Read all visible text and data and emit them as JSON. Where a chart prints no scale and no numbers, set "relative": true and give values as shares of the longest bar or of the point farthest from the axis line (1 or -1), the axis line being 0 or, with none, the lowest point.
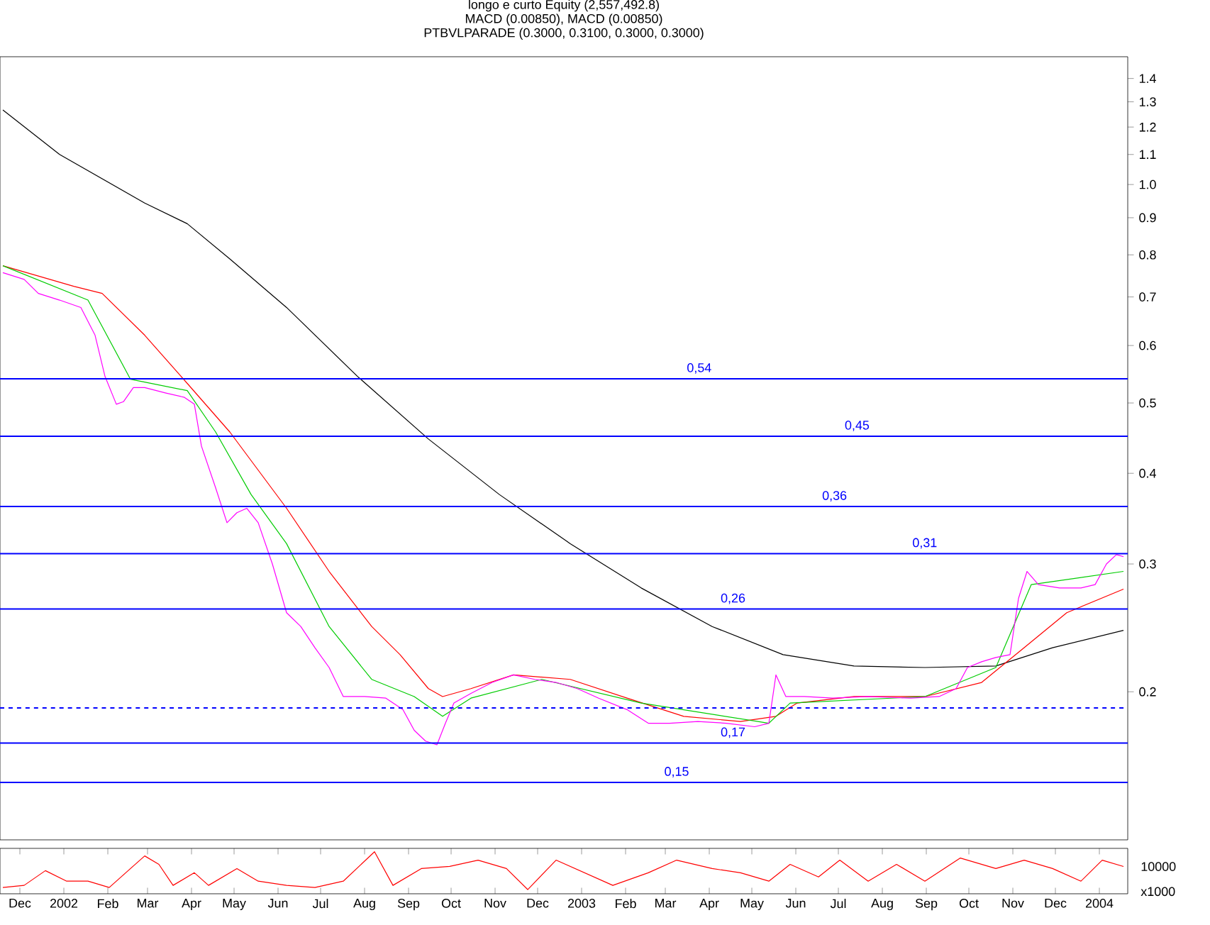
{
  "chart_data": [
    {
      "type": "line",
      "log": "y",
      "tick_labels": "y",
      "annotations": [
        "longo e curto Equity (2,557,492.8)",
        "MACD (0.00850), MACD (0.00850)",
        "PTBVLPARADE (0.3000, 0.3100, 0.3000, 0.3000)"
      ],
      "xlim": [
        "2001-12-01",
        "2004-02-04"
      ],
      "ylim": [
        0.125,
        1.5
      ],
      "yticks": [
        0.2,
        0.3,
        0.4,
        0.5,
        0.6,
        0.7,
        0.8,
        0.9,
        {
          "value": 1.0,
          "label": "1.0"
        },
        1.1,
        1.2,
        1.3,
        1.4
      ],
      "series": [
        {
          "color": "#000000",
          "x": [
            "2001-12-03",
            "2002-01-12",
            "2002-03-13",
            "2002-04-12",
            "2002-05-12",
            "2002-06-21",
            "2002-08-10",
            "2002-09-29",
            "2002-11-18",
            "2003-01-07",
            "2003-02-26",
            "2003-04-17",
            "2003-06-06",
            "2003-07-26",
            "2003-09-14",
            "2003-11-03",
            "2003-12-13",
            "2004-02-01"
          ],
          "values": [
            1.267,
            1.1,
            0.943,
            0.883,
            0.79,
            0.677,
            0.544,
            0.446,
            0.374,
            0.32,
            0.278,
            0.246,
            0.225,
            0.217,
            0.216,
            0.217,
            0.23,
            0.243
          ]
        },
        {
          "color": "#ff0000",
          "x": [
            "2001-12-03",
            "2002-01-22",
            "2002-02-11",
            "2002-03-13",
            "2002-04-12",
            "2002-05-12",
            "2002-06-21",
            "2002-07-21",
            "2002-08-20",
            "2002-09-09",
            "2002-09-29",
            "2002-10-09",
            "2002-10-29",
            "2002-11-28",
            "2003-01-07",
            "2003-02-16",
            "2003-03-28",
            "2003-05-07",
            "2003-06-01",
            "2003-06-16",
            "2003-07-26",
            "2003-09-14",
            "2003-10-24",
            "2003-11-23",
            "2003-12-23",
            "2004-02-01"
          ],
          "values": [
            0.773,
            0.724,
            0.708,
            0.62,
            0.532,
            0.456,
            0.358,
            0.293,
            0.246,
            0.225,
            0.202,
            0.197,
            0.202,
            0.211,
            0.208,
            0.196,
            0.185,
            0.182,
            0.185,
            0.193,
            0.197,
            0.197,
            0.206,
            0.23,
            0.257,
            0.277
          ]
        },
        {
          "color": "#00cc00",
          "x": [
            "2001-12-03",
            "2002-02-01",
            "2002-03-03",
            "2002-04-12",
            "2002-05-02",
            "2002-05-27",
            "2002-06-21",
            "2002-07-21",
            "2002-08-20",
            "2002-09-19",
            "2002-10-09",
            "2002-10-29",
            "2002-12-18",
            "2003-02-26",
            "2003-05-27",
            "2003-06-11",
            "2003-09-14",
            "2003-11-03",
            "2003-11-28",
            "2004-02-01"
          ],
          "values": [
            0.773,
            0.693,
            0.539,
            0.52,
            0.456,
            0.374,
            0.32,
            0.246,
            0.208,
            0.197,
            0.185,
            0.196,
            0.208,
            0.193,
            0.181,
            0.193,
            0.197,
            0.216,
            0.281,
            0.293
          ]
        },
        {
          "color": "#ff00ff",
          "x": [
            "2001-12-03",
            "2001-12-18",
            "2001-12-28",
            "2002-01-12",
            "2002-01-27",
            "2002-02-06",
            "2002-02-13",
            "2002-02-21",
            "2002-02-26",
            "2002-03-05",
            "2002-03-13",
            "2002-03-28",
            "2002-04-10",
            "2002-04-17",
            "2002-04-22",
            "2002-05-02",
            "2002-05-10",
            "2002-05-17",
            "2002-05-24",
            "2002-06-01",
            "2002-06-11",
            "2002-06-21",
            "2002-07-01",
            "2002-07-11",
            "2002-07-21",
            "2002-07-31",
            "2002-08-15",
            "2002-08-30",
            "2002-09-11",
            "2002-09-19",
            "2002-09-27",
            "2002-10-05",
            "2002-10-11",
            "2002-10-17",
            "2002-10-29",
            "2002-11-13",
            "2002-11-28",
            "2002-12-13",
            "2002-12-28",
            "2003-01-12",
            "2003-01-27",
            "2003-02-16",
            "2003-03-03",
            "2003-03-18",
            "2003-04-07",
            "2003-04-27",
            "2003-05-17",
            "2003-05-27",
            "2003-06-01",
            "2003-06-08",
            "2003-06-21",
            "2003-07-11",
            "2003-08-05",
            "2003-09-04",
            "2003-09-24",
            "2003-10-06",
            "2003-10-14",
            "2003-10-24",
            "2003-11-03",
            "2003-11-13",
            "2003-11-19",
            "2003-11-25",
            "2003-12-03",
            "2003-12-18",
            "2004-01-02",
            "2004-01-12",
            "2004-01-20",
            "2004-01-27",
            "2004-02-01"
          ],
          "values": [
            0.756,
            0.74,
            0.708,
            0.693,
            0.677,
            0.62,
            0.544,
            0.498,
            0.502,
            0.525,
            0.525,
            0.516,
            0.509,
            0.498,
            0.436,
            0.382,
            0.342,
            0.353,
            0.358,
            0.342,
            0.3,
            0.257,
            0.246,
            0.23,
            0.216,
            0.197,
            0.197,
            0.196,
            0.189,
            0.177,
            0.171,
            0.169,
            0.181,
            0.193,
            0.199,
            0.206,
            0.211,
            0.208,
            0.206,
            0.202,
            0.196,
            0.189,
            0.181,
            0.181,
            0.182,
            0.181,
            0.179,
            0.181,
            0.211,
            0.197,
            0.197,
            0.196,
            0.197,
            0.196,
            0.197,
            0.202,
            0.216,
            0.22,
            0.223,
            0.225,
            0.269,
            0.293,
            0.281,
            0.278,
            0.278,
            0.281,
            0.3,
            0.309,
            0.307
          ]
        }
      ],
      "ref_lines": [
        {
          "axis": "y",
          "value": 0.54,
          "label": "0,54",
          "color": "#0000ff"
        },
        {
          "axis": "y",
          "value": 0.45,
          "label": "0,45",
          "color": "#0000ff"
        },
        {
          "axis": "y",
          "value": 0.36,
          "label": "0,36",
          "color": "#0000ff"
        },
        {
          "axis": "y",
          "value": 0.31,
          "label": "0,31",
          "color": "#0000ff"
        },
        {
          "axis": "y",
          "value": 0.26,
          "label": "0,26",
          "color": "#0000ff"
        },
        {
          "axis": "y",
          "value": 0.19,
          "color": "#0000ff",
          "line_style": "dashed"
        },
        {
          "axis": "y",
          "value": 0.17,
          "label": "0,17",
          "color": "#0000ff"
        },
        {
          "axis": "y",
          "value": 0.15,
          "label": "0,15",
          "color": "#0000ff"
        }
      ]
    },
    {
      "type": "line",
      "relative": true,
      "tick_labels": "x",
      "annotations": [
        "10000",
        "x1000"
      ],
      "xlim": [
        "2001-12-01",
        "2004-02-04"
      ],
      "xticks": [
        {
          "value": "2001-12-15",
          "label": "Dec"
        },
        {
          "value": "2002-01-15",
          "label": "2002"
        },
        {
          "value": "2002-02-15",
          "label": "Feb"
        },
        {
          "value": "2002-03-15",
          "label": "Mar"
        },
        {
          "value": "2002-04-15",
          "label": "Apr"
        },
        {
          "value": "2002-05-15",
          "label": "May"
        },
        {
          "value": "2002-06-15",
          "label": "Jun"
        },
        {
          "value": "2002-07-15",
          "label": "Jul"
        },
        {
          "value": "2002-08-15",
          "label": "Aug"
        },
        {
          "value": "2002-09-15",
          "label": "Sep"
        },
        {
          "value": "2002-10-15",
          "label": "Oct"
        },
        {
          "value": "2002-11-15",
          "label": "Nov"
        },
        {
          "value": "2002-12-15",
          "label": "Dec"
        },
        {
          "value": "2003-01-15",
          "label": "2003"
        },
        {
          "value": "2003-02-15",
          "label": "Feb"
        },
        {
          "value": "2003-03-15",
          "label": "Mar"
        },
        {
          "value": "2003-04-15",
          "label": "Apr"
        },
        {
          "value": "2003-05-15",
          "label": "May"
        },
        {
          "value": "2003-06-15",
          "label": "Jun"
        },
        {
          "value": "2003-07-15",
          "label": "Jul"
        },
        {
          "value": "2003-08-15",
          "label": "Aug"
        },
        {
          "value": "2003-09-15",
          "label": "Sep"
        },
        {
          "value": "2003-10-15",
          "label": "Oct"
        },
        {
          "value": "2003-11-15",
          "label": "Nov"
        },
        {
          "value": "2003-12-15",
          "label": "Dec"
        },
        {
          "value": "2004-01-15",
          "label": "2004"
        }
      ],
      "series": [
        {
          "color": "#ff0000",
          "x": [
            "2001-12-03",
            "2001-12-18",
            "2002-01-02",
            "2002-01-17",
            "2002-02-01",
            "2002-02-16",
            "2002-03-03",
            "2002-03-13",
            "2002-03-23",
            "2002-04-02",
            "2002-04-17",
            "2002-04-27",
            "2002-05-17",
            "2002-06-01",
            "2002-06-21",
            "2002-07-11",
            "2002-07-31",
            "2002-08-22",
            "2002-09-04",
            "2002-09-24",
            "2002-10-14",
            "2002-11-03",
            "2002-11-23",
            "2002-12-08",
            "2002-12-28",
            "2003-01-17",
            "2003-02-06",
            "2003-03-03",
            "2003-03-23",
            "2003-04-17",
            "2003-05-07",
            "2003-05-27",
            "2003-06-11",
            "2003-07-01",
            "2003-07-16",
            "2003-08-05",
            "2003-08-25",
            "2003-09-14",
            "2003-10-09",
            "2003-11-03",
            "2003-11-23",
            "2003-12-13",
            "2004-01-02",
            "2004-01-17",
            "2004-02-01"
          ],
          "values": [
            0.15,
            0.2,
            0.55,
            0.3,
            0.3,
            0.15,
            0.6,
            0.9,
            0.7,
            0.2,
            0.5,
            0.2,
            0.6,
            0.3,
            0.2,
            0.15,
            0.3,
            1.0,
            0.2,
            0.6,
            0.65,
            0.8,
            0.6,
            0.1,
            0.8,
            0.5,
            0.2,
            0.5,
            0.8,
            0.6,
            0.5,
            0.3,
            0.7,
            0.4,
            0.8,
            0.3,
            0.7,
            0.3,
            0.85,
            0.6,
            0.8,
            0.6,
            0.3,
            0.8,
            0.65
          ]
        }
      ]
    }
  ]
}
